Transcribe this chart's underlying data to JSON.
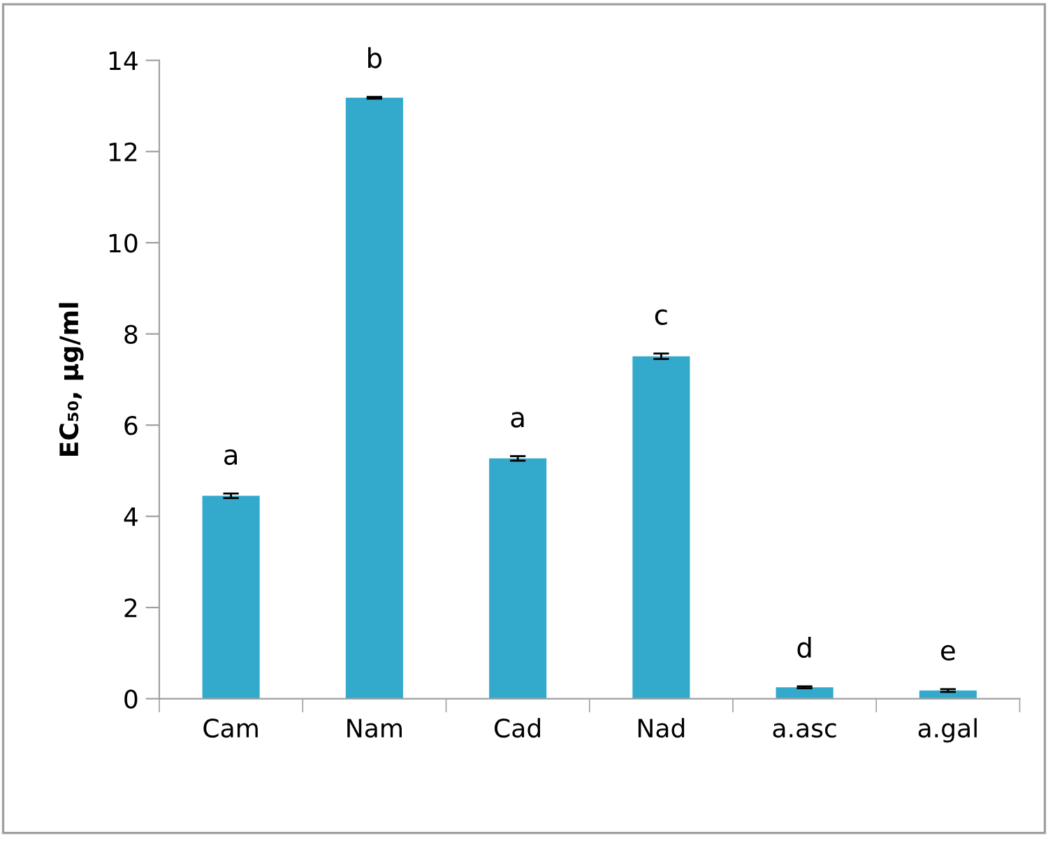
{
  "chart_data": {
    "type": "bar",
    "ylabel": "EC₅₀, µg/ml",
    "categories": [
      "Cam",
      "Nam",
      "Cad",
      "Nad",
      "a.asc",
      "a.gal"
    ],
    "values": [
      4.45,
      13.18,
      5.27,
      7.51,
      0.25,
      0.18
    ],
    "errors": [
      0.05,
      0.02,
      0.05,
      0.06,
      0.02,
      0.03
    ],
    "color": "#33a9cc",
    "ylim": [
      0,
      14
    ],
    "yticks": [
      0,
      2,
      4,
      6,
      8,
      10,
      12,
      14
    ],
    "annotations": [
      {
        "text": "a",
        "x": "Cam",
        "y": 4.45
      },
      {
        "text": "b",
        "x": "Nam",
        "y": 13.18
      },
      {
        "text": "a",
        "x": "Cad",
        "y": 5.27
      },
      {
        "text": "c",
        "x": "Nad",
        "y": 7.51
      },
      {
        "text": "d",
        "x": "a.asc",
        "y": 0.25
      },
      {
        "text": "e",
        "x": "a.gal",
        "y": 0.18
      }
    ]
  }
}
